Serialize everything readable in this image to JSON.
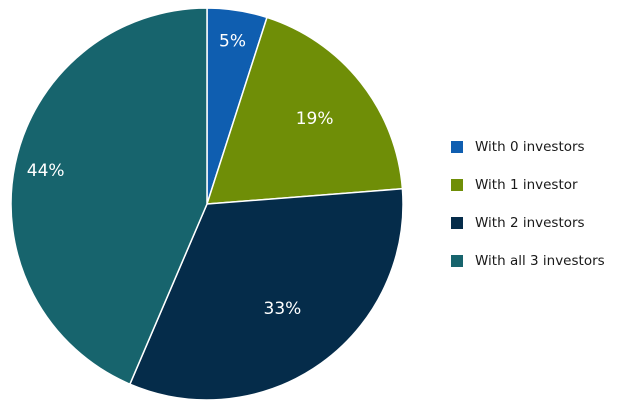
{
  "chart_data": {
    "type": "pie",
    "categories": [
      "With 0 investors",
      "With 1 investor",
      "With 2 investors",
      "With all 3 investors"
    ],
    "values": [
      5,
      19,
      33,
      44
    ],
    "data_labels": [
      "5%",
      "19%",
      "33%",
      "44%"
    ],
    "colors": [
      "#0f5eb0",
      "#6f8e07",
      "#052c4a",
      "#17646d"
    ],
    "start_angle_deg": 0,
    "direction": "clockwise",
    "legend_placement": "right",
    "title": "",
    "xlabel": "",
    "ylabel": ""
  }
}
